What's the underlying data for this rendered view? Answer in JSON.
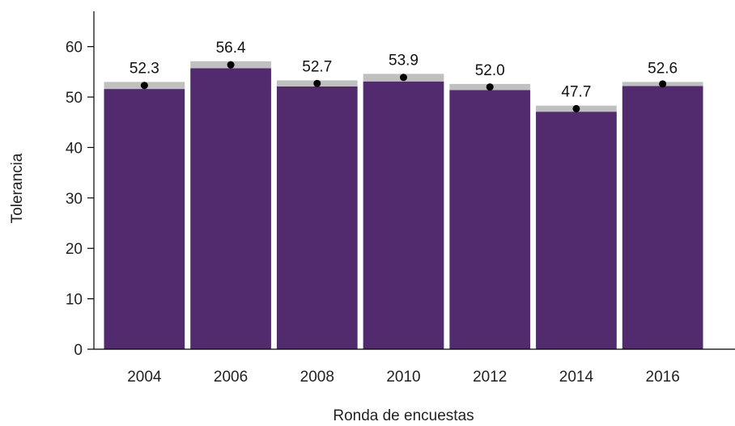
{
  "chart_data": {
    "type": "bar",
    "title": "",
    "xlabel": "Ronda de encuestas",
    "ylabel": "Tolerancia",
    "categories": [
      "2004",
      "2006",
      "2008",
      "2010",
      "2012",
      "2014",
      "2016"
    ],
    "series": [
      {
        "values": [
          52.3,
          56.4,
          52.7,
          53.9,
          52.0,
          47.7,
          52.6
        ],
        "labels": [
          "52.3",
          "56.4",
          "52.7",
          "53.9",
          "52.0",
          "47.7",
          "52.6"
        ],
        "ci_lower": [
          51.6,
          55.7,
          52.1,
          53.1,
          51.4,
          47.1,
          52.2
        ],
        "ci_upper": [
          53.0,
          57.1,
          53.3,
          54.6,
          52.6,
          48.3,
          53.0
        ]
      }
    ],
    "ylim": [
      0,
      67
    ],
    "yticks": [
      0,
      10,
      20,
      30,
      40,
      50,
      60
    ],
    "grid": false,
    "legend": "none",
    "colors": {
      "bar": "#522a6e",
      "ci_band": "#c0c0c0",
      "point": "#000000",
      "axis": "#000000"
    }
  }
}
